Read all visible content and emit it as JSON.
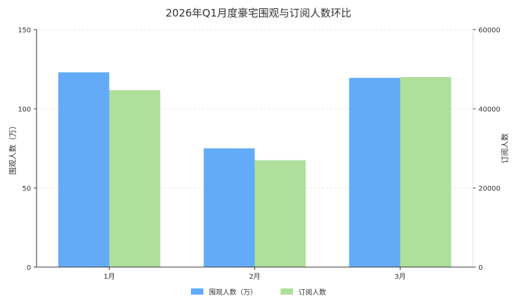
{
  "chart_data": {
    "type": "bar",
    "title": "2026年Q1月度豪宅围观与订阅人数环比",
    "categories": [
      "1月",
      "2月",
      "3月"
    ],
    "series": [
      {
        "name": "围观人数（万）",
        "axis": "left",
        "color": "#63abf8",
        "values": [
          123,
          75,
          119.5
        ]
      },
      {
        "name": "订阅人数",
        "axis": "right",
        "color": "#aedf9b",
        "values": [
          44700,
          27000,
          48000
        ]
      }
    ],
    "ylabel": "围观人数（万）",
    "y2label": "订阅人数",
    "ylim": [
      0,
      150
    ],
    "y2lim": [
      0,
      60000
    ],
    "yticks": [
      0,
      50,
      100,
      150
    ],
    "y2ticks": [
      0,
      20000,
      40000,
      60000
    ],
    "grid": true,
    "legend": "bottom-center"
  }
}
